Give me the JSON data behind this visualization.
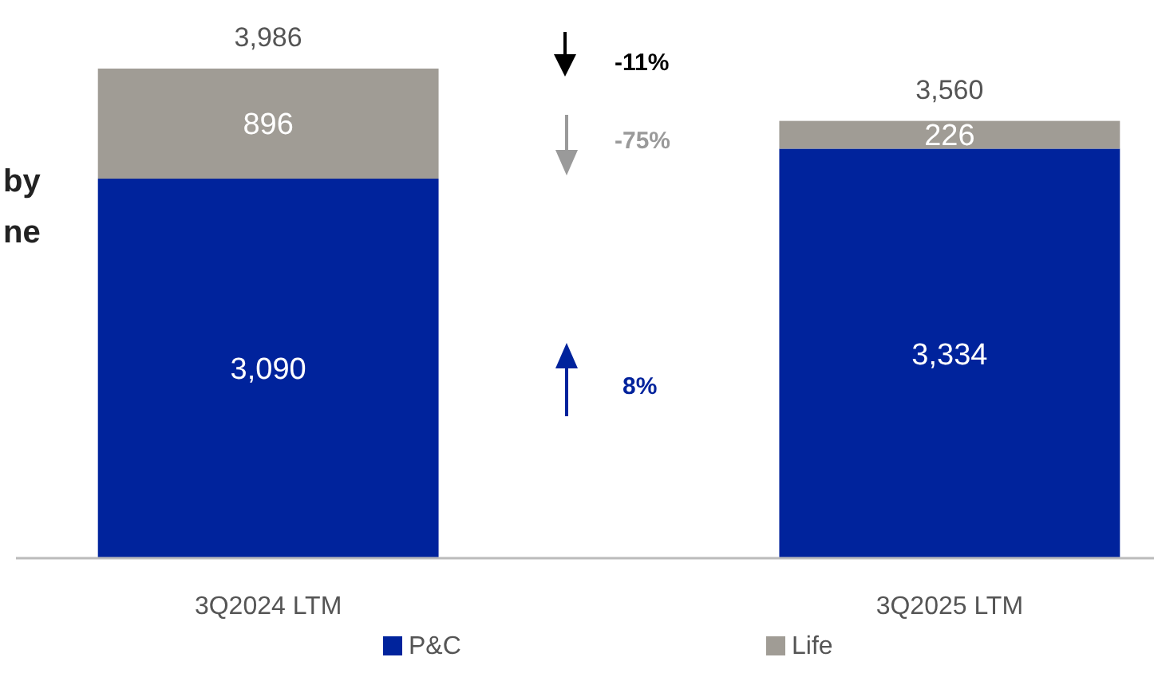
{
  "chart_data": {
    "type": "bar",
    "stacked": true,
    "categories": [
      "3Q2024 LTM",
      "3Q2025 LTM"
    ],
    "series": [
      {
        "name": "P&C",
        "color": "#00239c",
        "values": [
          3090,
          3334
        ],
        "value_labels": [
          "3,090",
          "3,334"
        ]
      },
      {
        "name": "Life",
        "color": "#a09c95",
        "values": [
          896,
          226
        ],
        "value_labels": [
          "896",
          "226"
        ]
      }
    ],
    "totals": [
      "3,986",
      "3,560"
    ],
    "legend": "bottom",
    "annotations": [
      "by",
      "ne",
      "-11%",
      "-75%",
      "8%"
    ]
  }
}
